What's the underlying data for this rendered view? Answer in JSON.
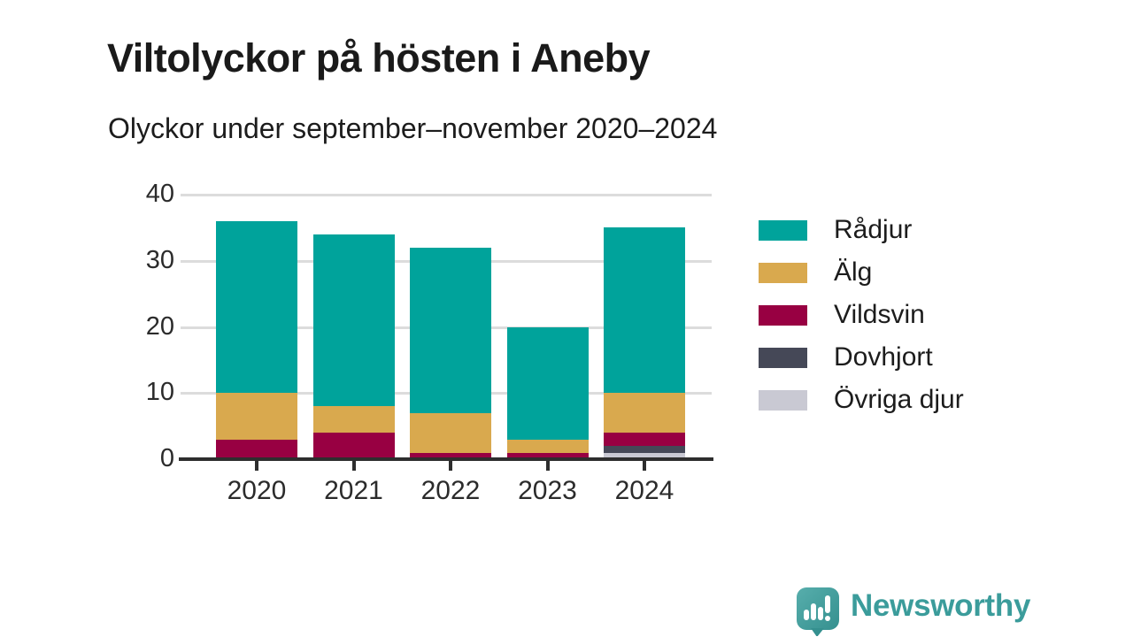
{
  "header": {
    "title": "Viltolyckor på hösten i Aneby",
    "subtitle": "Olyckor under september–november 2020–2024"
  },
  "chart_data": {
    "type": "bar",
    "stacked": true,
    "title": "Viltolyckor på hösten i Aneby",
    "subtitle": "Olyckor under september–november 2020–2024",
    "categories": [
      "2020",
      "2021",
      "2022",
      "2023",
      "2024"
    ],
    "series": [
      {
        "name": "Rådjur",
        "color": "#00A39B",
        "values": [
          26,
          26,
          25,
          17,
          25
        ]
      },
      {
        "name": "Älg",
        "color": "#D9A94E",
        "values": [
          7,
          4,
          6,
          2,
          6
        ]
      },
      {
        "name": "Vildsvin",
        "color": "#980042",
        "values": [
          3,
          4,
          1,
          1,
          2
        ]
      },
      {
        "name": "Dovhjort",
        "color": "#454857",
        "values": [
          0,
          0,
          0,
          0,
          1
        ]
      },
      {
        "name": "Övriga djur",
        "color": "#C9C9D3",
        "values": [
          0,
          0,
          0,
          0,
          1
        ]
      }
    ],
    "stack_order_bottom_to_top": [
      "Övriga djur",
      "Dovhjort",
      "Vildsvin",
      "Älg",
      "Rådjur"
    ],
    "totals": [
      36,
      34,
      32,
      20,
      35
    ],
    "xlabel": "",
    "ylabel": "",
    "ylim": [
      0,
      40
    ],
    "yticks": [
      0,
      10,
      20,
      30,
      40
    ],
    "grid": true,
    "legend_position": "right"
  },
  "colors": {
    "gridline": "#dcdcdc",
    "axis": "#2e2e2e",
    "tick_text": "#2b2b2b"
  },
  "footer": {
    "brand": "Newsworthy",
    "brand_color": "#3B9C9B",
    "logo_icon": "speech-bubble-bar-chart-icon",
    "logo_bubble_color_top": "#55ACAA",
    "logo_bubble_color_bottom": "#35908F"
  }
}
